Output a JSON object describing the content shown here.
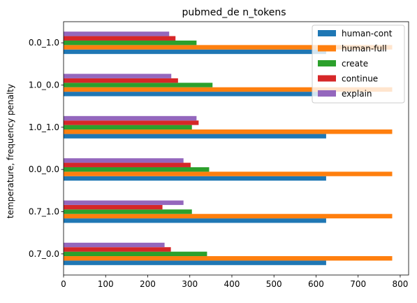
{
  "chart_data": {
    "type": "bar",
    "orientation": "horizontal",
    "title": "pubmed_de n_tokens",
    "xlabel": "",
    "ylabel": "temperature, frequency penalty",
    "xlim": [
      0,
      820
    ],
    "xticks": [
      "0",
      "100",
      "200",
      "300",
      "400",
      "500",
      "600",
      "700",
      "800"
    ],
    "categories": [
      "0.0_1.0",
      "1.0_0.0",
      "1.0_1.0",
      "0.0_0.0",
      "0.7_1.0",
      "0.7_0.0"
    ],
    "legend_position": "top-right",
    "grid": false,
    "series": [
      {
        "name": "human-cont",
        "color": "#1f77b4",
        "values": [
          624,
          624,
          624,
          624,
          624,
          624
        ]
      },
      {
        "name": "human-full",
        "color": "#ff7f0e",
        "values": [
          781,
          781,
          781,
          781,
          781,
          781
        ]
      },
      {
        "name": "create",
        "color": "#2ca02c",
        "values": [
          316,
          354,
          305,
          346,
          305,
          341
        ]
      },
      {
        "name": "continue",
        "color": "#d62728",
        "values": [
          266,
          272,
          321,
          302,
          235,
          255
        ]
      },
      {
        "name": "explain",
        "color": "#9467bd",
        "values": [
          251,
          256,
          316,
          285,
          285,
          240
        ]
      }
    ]
  }
}
